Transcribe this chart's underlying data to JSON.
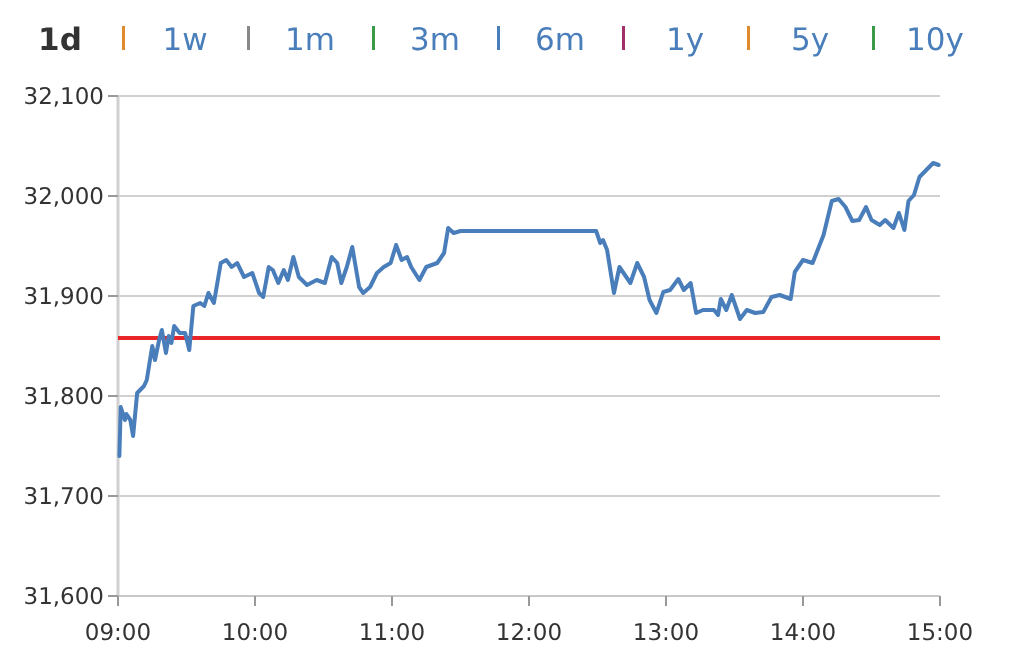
{
  "chart_data": {
    "type": "line",
    "annotations": [
      "1d",
      "1w",
      "1m",
      "3m",
      "6m",
      "1y",
      "5y",
      "10y"
    ],
    "x": [
      9.01,
      9.02,
      9.05,
      9.06,
      9.09,
      9.11,
      9.14,
      9.19,
      9.21,
      9.25,
      9.27,
      9.3,
      9.32,
      9.35,
      9.37,
      9.39,
      9.41,
      9.45,
      9.49,
      9.52,
      9.55,
      9.6,
      9.63,
      9.66,
      9.7,
      9.75,
      9.79,
      9.83,
      9.87,
      9.92,
      9.98,
      10.03,
      10.06,
      10.1,
      10.13,
      10.17,
      10.21,
      10.24,
      10.28,
      10.32,
      10.38,
      10.45,
      10.51,
      10.56,
      10.6,
      10.63,
      10.67,
      10.71,
      10.76,
      10.79,
      10.84,
      10.89,
      10.94,
      10.99,
      11.03,
      11.07,
      11.11,
      11.14,
      11.2,
      11.25,
      11.33,
      11.38,
      11.41,
      11.45,
      11.5,
      12.49,
      12.52,
      12.54,
      12.57,
      12.62,
      12.66,
      12.74,
      12.79,
      12.84,
      12.88,
      12.93,
      12.98,
      13.03,
      13.09,
      13.13,
      13.18,
      13.22,
      13.27,
      13.35,
      13.38,
      13.4,
      13.44,
      13.48,
      13.54,
      13.59,
      13.65,
      13.71,
      13.77,
      13.83,
      13.91,
      13.94,
      14.0,
      14.07,
      14.15,
      14.21,
      14.26,
      14.31,
      14.36,
      14.41,
      14.46,
      14.5,
      14.56,
      14.6,
      14.66,
      14.7,
      14.74,
      14.77,
      14.81,
      14.85,
      14.9,
      14.95,
      14.99
    ],
    "series": [
      {
        "color": "#4a7ebb",
        "values": [
          31740,
          31789,
          31776,
          31782,
          31776,
          31760,
          31803,
          31810,
          31816,
          31850,
          31836,
          31856,
          31866,
          31843,
          31860,
          31853,
          31870,
          31863,
          31863,
          31846,
          31890,
          31893,
          31890,
          31903,
          31893,
          31933,
          31936,
          31929,
          31933,
          31919,
          31923,
          31903,
          31899,
          31929,
          31926,
          31913,
          31926,
          31916,
          31939,
          31919,
          31911,
          31916,
          31913,
          31939,
          31933,
          31913,
          31929,
          31949,
          31909,
          31903,
          31909,
          31923,
          31929,
          31933,
          31951,
          31936,
          31939,
          31929,
          31916,
          31929,
          31933,
          31943,
          31968,
          31963,
          31965,
          31965,
          31953,
          31956,
          31946,
          31903,
          31929,
          31913,
          31933,
          31919,
          31896,
          31883,
          31904,
          31906,
          31917,
          31906,
          31913,
          31883,
          31886,
          31886,
          31881,
          31897,
          31886,
          31901,
          31877,
          31886,
          31883,
          31884,
          31899,
          31901,
          31897,
          31924,
          31936,
          31933,
          31961,
          31995,
          31997,
          31989,
          31975,
          31976,
          31989,
          31976,
          31971,
          31976,
          31968,
          31983,
          31966,
          31995,
          32001,
          32019,
          32026,
          32033,
          32031
        ]
      }
    ],
    "xlim": [
      9,
      15
    ],
    "xticks": [
      {
        "value": 9,
        "label": "09:00"
      },
      {
        "value": 10,
        "label": "10:00"
      },
      {
        "value": 11,
        "label": "11:00"
      },
      {
        "value": 12,
        "label": "12:00"
      },
      {
        "value": 13,
        "label": "13:00"
      },
      {
        "value": 14,
        "label": "14:00"
      },
      {
        "value": 15,
        "label": "15:00"
      }
    ],
    "ylim": [
      31600,
      32100
    ],
    "yticks": [
      {
        "value": 31600,
        "label": "31,600"
      },
      {
        "value": 31700,
        "label": "31,700"
      },
      {
        "value": 31800,
        "label": "31,800"
      },
      {
        "value": 31900,
        "label": "31,900"
      },
      {
        "value": 32000,
        "label": "32,000"
      },
      {
        "value": 32100,
        "label": "32,100"
      }
    ],
    "grid": "y",
    "ref_lines": [
      {
        "axis": "y",
        "value": 31858,
        "color": "#e8262a"
      }
    ],
    "marker": "none",
    "line_style": "solid"
  }
}
